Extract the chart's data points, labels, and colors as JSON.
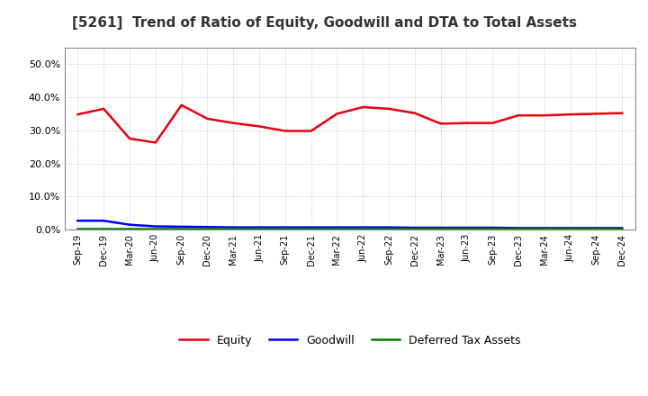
{
  "title": "[5261]  Trend of Ratio of Equity, Goodwill and DTA to Total Assets",
  "x_labels": [
    "Sep-19",
    "Dec-19",
    "Mar-20",
    "Jun-20",
    "Sep-20",
    "Dec-20",
    "Mar-21",
    "Jun-21",
    "Sep-21",
    "Dec-21",
    "Mar-22",
    "Jun-22",
    "Sep-22",
    "Dec-22",
    "Mar-23",
    "Jun-23",
    "Sep-23",
    "Dec-23",
    "Mar-24",
    "Jun-24",
    "Sep-24",
    "Dec-24"
  ],
  "equity": [
    0.348,
    0.365,
    0.275,
    0.263,
    0.376,
    0.335,
    0.322,
    0.312,
    0.298,
    0.298,
    0.35,
    0.37,
    0.365,
    0.352,
    0.32,
    0.322,
    0.322,
    0.345,
    0.345,
    0.348,
    0.35,
    0.352
  ],
  "goodwill": [
    0.027,
    0.027,
    0.015,
    0.01,
    0.009,
    0.008,
    0.007,
    0.007,
    0.007,
    0.007,
    0.007,
    0.007,
    0.007,
    0.006,
    0.006,
    0.006,
    0.006,
    0.005,
    0.005,
    0.005,
    0.005,
    0.005
  ],
  "dta": [
    0.002,
    0.002,
    0.002,
    0.002,
    0.002,
    0.002,
    0.002,
    0.002,
    0.002,
    0.002,
    0.002,
    0.002,
    0.002,
    0.002,
    0.002,
    0.002,
    0.002,
    0.002,
    0.002,
    0.002,
    0.002,
    0.002
  ],
  "equity_color": "#e8000d",
  "goodwill_color": "#0000ff",
  "dta_color": "#008000",
  "ylim": [
    0.0,
    0.55
  ],
  "yticks": [
    0.0,
    0.1,
    0.2,
    0.3,
    0.4,
    0.5
  ],
  "background_color": "#ffffff",
  "grid_color": "#bbbbbb",
  "title_fontsize": 11,
  "legend_labels": [
    "Equity",
    "Goodwill",
    "Deferred Tax Assets"
  ]
}
